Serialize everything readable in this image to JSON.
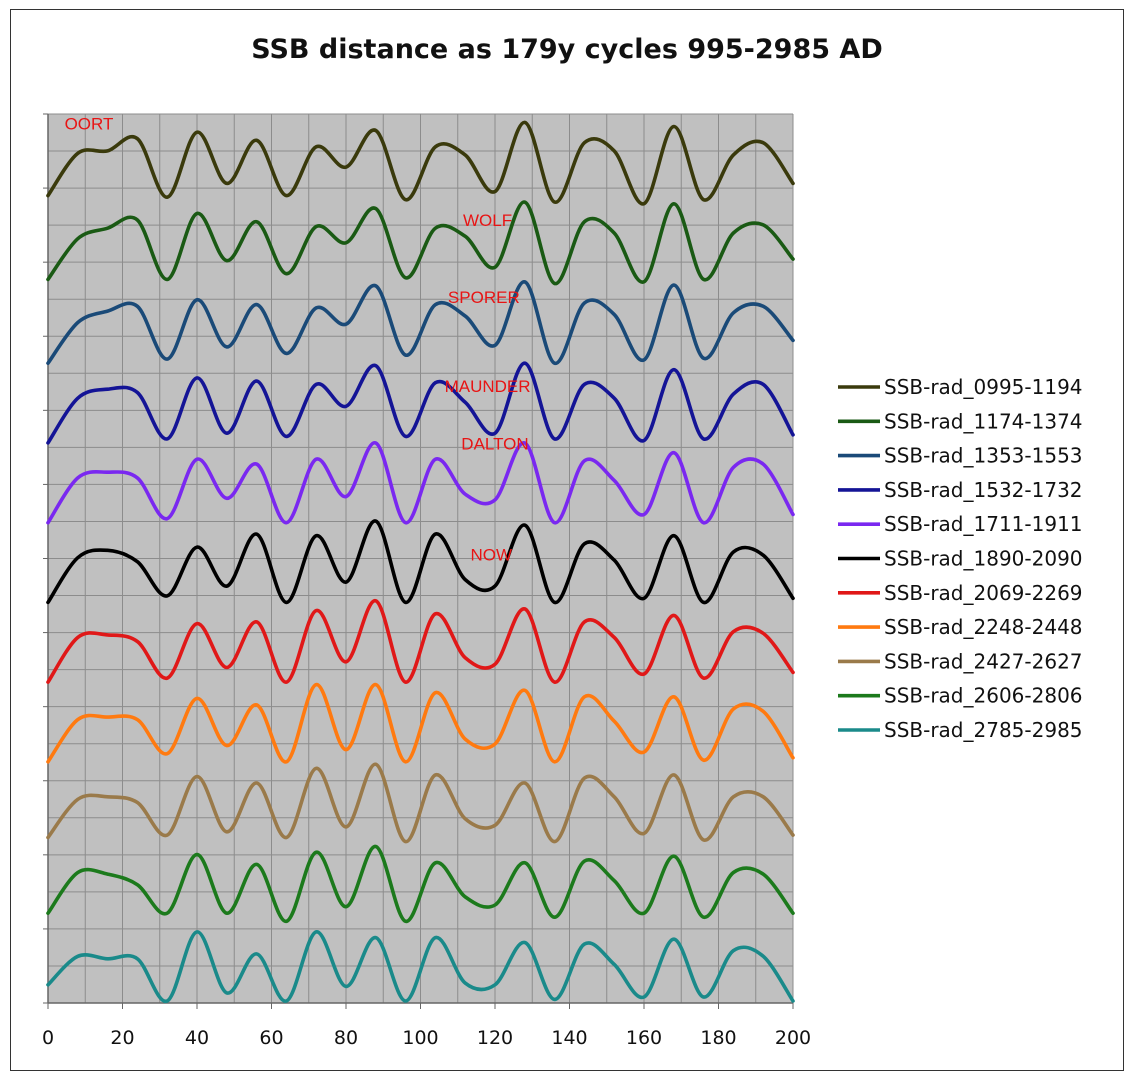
{
  "chart_data": {
    "type": "line",
    "title": "SSB distance as 179y cycles 995-2985 AD",
    "xlabel": "",
    "ylabel": "",
    "xlim": [
      0,
      200
    ],
    "x_ticks": [
      "0",
      "20",
      "40",
      "60",
      "80",
      "100",
      "120",
      "140",
      "160",
      "180",
      "200"
    ],
    "grid": true,
    "legend_position": "right",
    "annotations": [
      {
        "text": "OORT",
        "x": 11,
        "series": 0
      },
      {
        "text": "WOLF",
        "x": 118,
        "series": 1
      },
      {
        "text": "SPORER",
        "x": 117,
        "series": 2
      },
      {
        "text": "MAUNDER",
        "x": 118,
        "series": 3
      },
      {
        "text": "DALTON",
        "x": 120,
        "series": 4
      },
      {
        "text": "NOW",
        "x": 119,
        "series": 5
      }
    ],
    "series": [
      {
        "name": "SSB-rad_0995-1194",
        "color": "#3a3a0c",
        "values": [
          0.1,
          0.62,
          0.65,
          0.8,
          0.08,
          0.88,
          0.25,
          0.78,
          0.1,
          0.7,
          0.45,
          0.9,
          0.05,
          0.7,
          0.6,
          0.15,
          1.0,
          0.02,
          0.75,
          0.65,
          0.0,
          0.95,
          0.05,
          0.6,
          0.75,
          0.25
        ]
      },
      {
        "name": "SSB-rad_1174-1374",
        "color": "#1a5a14",
        "values": [
          0.05,
          0.55,
          0.68,
          0.78,
          0.05,
          0.86,
          0.28,
          0.76,
          0.12,
          0.7,
          0.5,
          0.92,
          0.07,
          0.68,
          0.58,
          0.2,
          1.0,
          0.0,
          0.76,
          0.62,
          0.02,
          0.98,
          0.05,
          0.62,
          0.72,
          0.3
        ]
      },
      {
        "name": "SSB-rad_1353-1553",
        "color": "#1a4a78",
        "values": [
          0.0,
          0.5,
          0.64,
          0.7,
          0.05,
          0.78,
          0.2,
          0.72,
          0.12,
          0.68,
          0.48,
          0.95,
          0.1,
          0.72,
          0.58,
          0.22,
          1.0,
          0.0,
          0.74,
          0.6,
          0.04,
          0.96,
          0.06,
          0.62,
          0.7,
          0.28
        ]
      },
      {
        "name": "SSB-rad_1532-1732",
        "color": "#141496",
        "values": [
          0.0,
          0.55,
          0.66,
          0.62,
          0.05,
          0.8,
          0.12,
          0.76,
          0.08,
          0.72,
          0.45,
          0.95,
          0.08,
          0.74,
          0.5,
          0.12,
          0.98,
          0.05,
          0.72,
          0.55,
          0.03,
          0.9,
          0.05,
          0.6,
          0.72,
          0.1
        ]
      },
      {
        "name": "SSB-rad_1711-1911",
        "color": "#7a28f0",
        "values": [
          0.0,
          0.55,
          0.62,
          0.55,
          0.05,
          0.78,
          0.3,
          0.72,
          0.0,
          0.78,
          0.32,
          0.98,
          0.0,
          0.78,
          0.35,
          0.28,
          0.98,
          0.0,
          0.76,
          0.52,
          0.1,
          0.86,
          0.0,
          0.68,
          0.72,
          0.1
        ]
      },
      {
        "name": "SSB-rad_1890-2090",
        "color": "#000000",
        "values": [
          0.0,
          0.55,
          0.64,
          0.5,
          0.08,
          0.68,
          0.2,
          0.84,
          0.0,
          0.82,
          0.25,
          1.0,
          0.0,
          0.84,
          0.28,
          0.2,
          0.95,
          0.0,
          0.72,
          0.52,
          0.05,
          0.82,
          0.0,
          0.62,
          0.58,
          0.05
        ]
      },
      {
        "name": "SSB-rad_2069-2269",
        "color": "#e01818",
        "values": [
          0.0,
          0.55,
          0.58,
          0.5,
          0.05,
          0.72,
          0.18,
          0.74,
          0.0,
          0.88,
          0.25,
          1.0,
          0.0,
          0.84,
          0.3,
          0.22,
          0.9,
          0.0,
          0.74,
          0.55,
          0.1,
          0.82,
          0.05,
          0.62,
          0.6,
          0.12
        ]
      },
      {
        "name": "SSB-rad_2248-2448",
        "color": "#ff7a10",
        "values": [
          0.0,
          0.52,
          0.55,
          0.52,
          0.1,
          0.78,
          0.2,
          0.7,
          0.0,
          0.95,
          0.15,
          0.95,
          0.0,
          0.85,
          0.28,
          0.22,
          0.88,
          0.0,
          0.8,
          0.5,
          0.12,
          0.8,
          0.02,
          0.65,
          0.62,
          0.05
        ]
      },
      {
        "name": "SSB-rad_2427-2627",
        "color": "#9a7a4a",
        "values": [
          0.05,
          0.52,
          0.55,
          0.48,
          0.08,
          0.8,
          0.12,
          0.72,
          0.05,
          0.9,
          0.18,
          0.95,
          0.0,
          0.82,
          0.28,
          0.2,
          0.72,
          0.0,
          0.78,
          0.55,
          0.1,
          0.82,
          0.02,
          0.55,
          0.55,
          0.08
        ]
      },
      {
        "name": "SSB-rad_2606-2806",
        "color": "#1c7a1c",
        "values": [
          0.1,
          0.6,
          0.58,
          0.45,
          0.1,
          0.82,
          0.1,
          0.7,
          0.0,
          0.85,
          0.18,
          0.92,
          0.0,
          0.72,
          0.3,
          0.2,
          0.72,
          0.05,
          0.74,
          0.5,
          0.1,
          0.8,
          0.05,
          0.6,
          0.58,
          0.1
        ]
      },
      {
        "name": "SSB-rad_2785-2985",
        "color": "#1a8a8a",
        "values": [
          0.2,
          0.55,
          0.52,
          0.52,
          0.0,
          0.85,
          0.1,
          0.58,
          0.0,
          0.85,
          0.18,
          0.78,
          0.0,
          0.78,
          0.22,
          0.2,
          0.72,
          0.02,
          0.7,
          0.45,
          0.05,
          0.76,
          0.05,
          0.62,
          0.55,
          0.0
        ]
      }
    ]
  }
}
